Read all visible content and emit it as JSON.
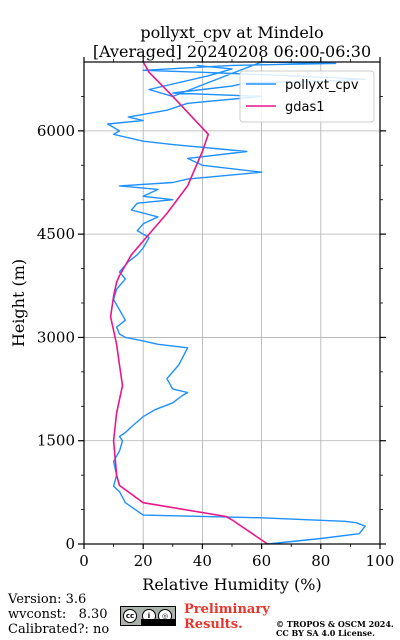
{
  "chart_data": {
    "type": "line",
    "title": "pollyxt_cpv at Mindelo",
    "subtitle": "[Averaged] 20240208 06:00-06:30",
    "xlabel": "Relative Humidity (%)",
    "ylabel": "Height (m)",
    "xlim": [
      0,
      100
    ],
    "ylim": [
      0,
      7000
    ],
    "xticks": [
      "0",
      "20",
      "40",
      "60",
      "80",
      "100"
    ],
    "yticks": [
      "0",
      "1500",
      "3000",
      "4500",
      "6000"
    ],
    "grid": true,
    "legend": "top-right",
    "series": [
      {
        "name": "pollyxt_cpv",
        "color": "#1e90ff",
        "x": [
          62,
          80,
          93,
          95,
          92,
          88,
          60,
          20,
          14,
          12,
          10,
          11,
          10,
          12,
          13,
          12,
          14,
          16,
          20,
          24,
          30,
          33,
          35,
          30,
          28,
          32,
          35,
          25,
          20,
          14,
          12,
          11,
          14,
          12,
          10,
          11,
          14,
          12,
          15,
          18,
          20,
          22,
          18,
          20,
          25,
          16,
          18,
          30,
          20,
          25,
          12,
          30,
          35,
          60,
          40,
          35,
          55,
          30,
          20,
          10,
          12,
          8,
          20,
          15,
          28,
          35,
          60,
          30,
          40,
          50,
          55,
          80,
          95,
          70,
          40,
          20,
          50,
          85,
          60,
          30,
          22,
          42,
          50,
          38
        ],
        "y": [
          0,
          80,
          150,
          260,
          310,
          330,
          380,
          420,
          600,
          760,
          840,
          1000,
          1200,
          1350,
          1500,
          1560,
          1620,
          1700,
          1850,
          1950,
          2050,
          2150,
          2200,
          2250,
          2400,
          2600,
          2850,
          2900,
          2950,
          3000,
          3050,
          3150,
          3250,
          3400,
          3550,
          3700,
          3850,
          3950,
          4100,
          4200,
          4300,
          4450,
          4550,
          4650,
          4750,
          4850,
          4950,
          5000,
          5050,
          5150,
          5200,
          5250,
          5300,
          5400,
          5500,
          5600,
          5700,
          5800,
          5850,
          5950,
          6000,
          6100,
          6150,
          6200,
          6300,
          6400,
          6500,
          6550,
          6600,
          6650,
          6700,
          6720,
          6750,
          6800,
          6850,
          6880,
          6950,
          6980,
          7000,
          6500,
          6600,
          6800,
          6900,
          6950
        ]
      },
      {
        "name": "gdas1",
        "color": "#e8178a",
        "x": [
          62,
          50,
          48,
          20,
          12,
          11,
          10,
          11,
          12,
          13,
          12,
          11,
          9,
          10,
          11,
          12,
          16,
          22,
          28,
          35,
          40,
          42,
          30,
          22,
          20
        ],
        "y": [
          0,
          350,
          400,
          600,
          850,
          1000,
          1500,
          1900,
          2100,
          2300,
          2600,
          2900,
          3300,
          3600,
          3800,
          3900,
          4200,
          4500,
          4800,
          5200,
          5700,
          5950,
          6500,
          6850,
          7000
        ]
      }
    ]
  },
  "footer": {
    "version": "Version: 3.6",
    "wvconst": "wvconst:   8.30",
    "calibrated": "Calibrated?: no",
    "cc_label": "BY SA",
    "preliminary_line1": "Preliminary",
    "preliminary_line2": "Results.",
    "copyright_line1": "© TROPOS & OSCM 2024.",
    "copyright_line2": "CC BY SA 4.0 License."
  }
}
